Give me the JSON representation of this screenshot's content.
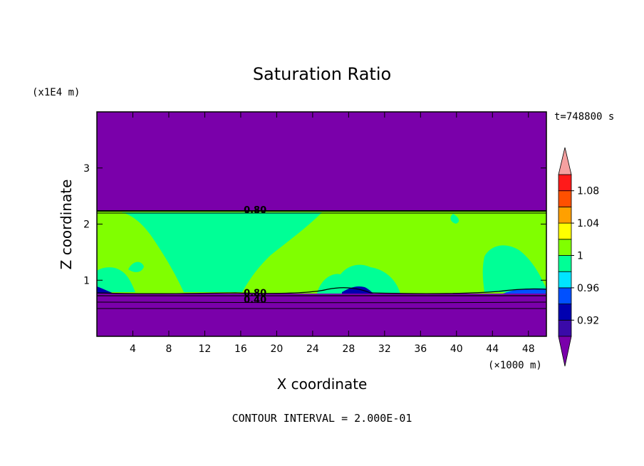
{
  "chart_data": {
    "type": "heatmap",
    "title": "Saturation Ratio",
    "xlabel": "X coordinate",
    "ylabel": "Z coordinate",
    "x_unit": "(×1000 m)",
    "y_unit": "(x1E4 m)",
    "time_label": "t=748800 s",
    "footer": "CONTOUR INTERVAL = 2.000E-01",
    "xlim": [
      0,
      50
    ],
    "ylim": [
      0,
      4
    ],
    "x_ticks": [
      4,
      8,
      12,
      16,
      20,
      24,
      28,
      32,
      36,
      40,
      44,
      48
    ],
    "y_ticks": [
      1,
      2,
      3
    ],
    "contour_labels": [
      {
        "text": "0.80",
        "x": 17.6,
        "y": 2.26
      },
      {
        "text": "0.80",
        "x": 17.6,
        "y": 0.78
      },
      {
        "text": "0.40",
        "x": 17.6,
        "y": 0.66
      }
    ],
    "colorbar": {
      "levels": [
        0.9,
        0.92,
        0.94,
        0.96,
        0.98,
        1.0,
        1.02,
        1.04,
        1.06,
        1.08,
        1.1
      ],
      "labels": [
        "0.92",
        "0.96",
        "1",
        "1.04",
        "1.08"
      ],
      "label_values": [
        0.92,
        0.96,
        1.0,
        1.04,
        1.08
      ],
      "colors": [
        "#3a0aa8",
        "#0000b0",
        "#0050ff",
        "#00e5ff",
        "#00ff96",
        "#80ff00",
        "#ffff00",
        "#ffa000",
        "#ff5000",
        "#ff1a1a"
      ],
      "under_color": "#7a00aa",
      "over_color": "#f5a0a0"
    },
    "regions": {
      "background": "#7a00aa",
      "supersaturated": "#80ff00",
      "near_saturated": "#00ff96",
      "dry_layer_top": 2.26,
      "moist_layer_bottom": 0.77
    }
  }
}
